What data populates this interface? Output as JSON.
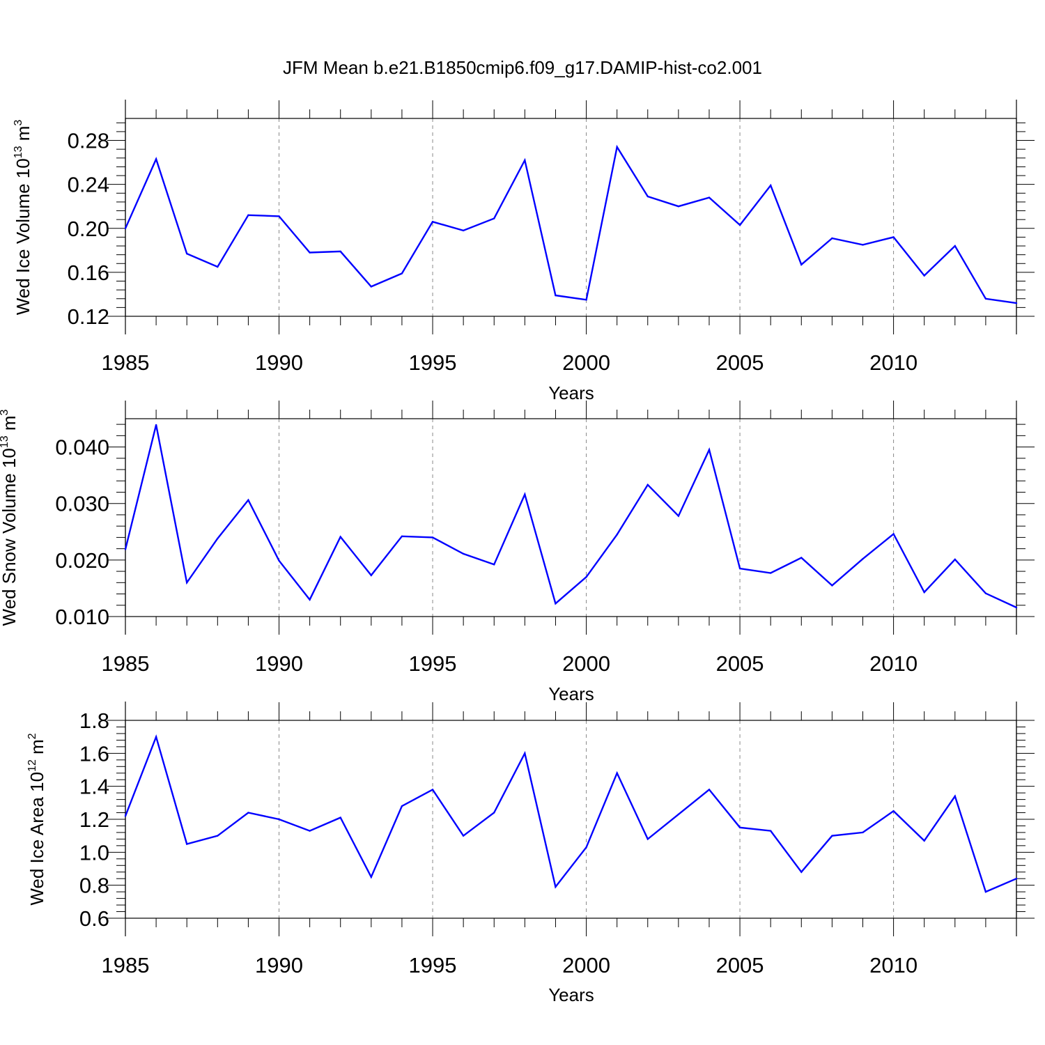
{
  "title": "JFM Mean b.e21.B1850cmip6.f09_g17.DAMIP-hist-co2.001",
  "chart_data": [
    {
      "type": "line",
      "ylabel_main": "Wed Ice Volume 10",
      "ylabel_exp": "13",
      "ylabel_unit": " m",
      "ylabel_unit_exp": "3",
      "xlabel": "Years",
      "xlim": [
        1985,
        2014
      ],
      "ylim": [
        0.12,
        0.3
      ],
      "yticks": [
        0.12,
        0.16,
        0.2,
        0.24,
        0.28
      ],
      "ytick_labels": [
        "0.12",
        "0.16",
        "0.20",
        "0.24",
        "0.28"
      ],
      "xticks": [
        1985,
        1990,
        1995,
        2000,
        2005,
        2010
      ],
      "xtick_labels": [
        "1985",
        "1990",
        "1995",
        "2000",
        "2005",
        "2010"
      ],
      "color": "#0000ff",
      "x": [
        1985,
        1986,
        1987,
        1988,
        1989,
        1990,
        1991,
        1992,
        1993,
        1994,
        1995,
        1996,
        1997,
        1998,
        1999,
        2000,
        2001,
        2002,
        2003,
        2004,
        2005,
        2006,
        2007,
        2008,
        2009,
        2010,
        2011,
        2012,
        2013,
        2014
      ],
      "values": [
        0.2,
        0.263,
        0.177,
        0.165,
        0.212,
        0.211,
        0.178,
        0.179,
        0.147,
        0.159,
        0.206,
        0.198,
        0.209,
        0.262,
        0.139,
        0.135,
        0.274,
        0.229,
        0.22,
        0.228,
        0.203,
        0.239,
        0.167,
        0.191,
        0.185,
        0.192,
        0.157,
        0.184,
        0.136,
        0.132
      ]
    },
    {
      "type": "line",
      "ylabel_main": "Wed Snow Volume 10",
      "ylabel_exp": "13",
      "ylabel_unit": " m",
      "ylabel_unit_exp": "3",
      "xlabel": "Years",
      "xlim": [
        1985,
        2014
      ],
      "ylim": [
        0.01,
        0.045
      ],
      "yticks": [
        0.01,
        0.02,
        0.03,
        0.04
      ],
      "ytick_labels": [
        "0.010",
        "0.020",
        "0.030",
        "0.040"
      ],
      "xticks": [
        1985,
        1990,
        1995,
        2000,
        2005,
        2010
      ],
      "xtick_labels": [
        "1985",
        "1990",
        "1995",
        "2000",
        "2005",
        "2010"
      ],
      "color": "#0000ff",
      "x": [
        1985,
        1986,
        1987,
        1988,
        1989,
        1990,
        1991,
        1992,
        1993,
        1994,
        1995,
        1996,
        1997,
        1998,
        1999,
        2000,
        2001,
        2002,
        2003,
        2004,
        2005,
        2006,
        2007,
        2008,
        2009,
        2010,
        2011,
        2012,
        2013,
        2014
      ],
      "values": [
        0.0219,
        0.0439,
        0.016,
        0.0238,
        0.0306,
        0.0199,
        0.013,
        0.0241,
        0.0173,
        0.0242,
        0.024,
        0.0211,
        0.0192,
        0.0316,
        0.0123,
        0.017,
        0.0245,
        0.0333,
        0.0278,
        0.0395,
        0.0185,
        0.0177,
        0.0204,
        0.0155,
        0.0202,
        0.0246,
        0.0143,
        0.0201,
        0.0141,
        0.0116
      ]
    },
    {
      "type": "line",
      "ylabel_main": "Wed Ice Area 10",
      "ylabel_exp": "12",
      "ylabel_unit": " m",
      "ylabel_unit_exp": "2",
      "xlabel": "Years",
      "xlim": [
        1985,
        2014
      ],
      "ylim": [
        0.6,
        1.8
      ],
      "yticks": [
        0.6,
        0.8,
        1.0,
        1.2,
        1.4,
        1.6,
        1.8
      ],
      "ytick_labels": [
        "0.6",
        "0.8",
        "1.0",
        "1.2",
        "1.4",
        "1.6",
        "1.8"
      ],
      "xticks": [
        1985,
        1990,
        1995,
        2000,
        2005,
        2010
      ],
      "xtick_labels": [
        "1985",
        "1990",
        "1995",
        "2000",
        "2005",
        "2010"
      ],
      "color": "#0000ff",
      "x": [
        1985,
        1986,
        1987,
        1988,
        1989,
        1990,
        1991,
        1992,
        1993,
        1994,
        1995,
        1996,
        1997,
        1998,
        1999,
        2000,
        2001,
        2002,
        2003,
        2004,
        2005,
        2006,
        2007,
        2008,
        2009,
        2010,
        2011,
        2012,
        2013,
        2014
      ],
      "values": [
        1.22,
        1.7,
        1.05,
        1.1,
        1.24,
        1.2,
        1.13,
        1.21,
        0.85,
        1.28,
        1.38,
        1.1,
        1.24,
        1.6,
        0.79,
        1.03,
        1.48,
        1.08,
        1.23,
        1.38,
        1.15,
        1.13,
        0.88,
        1.1,
        1.12,
        1.25,
        1.07,
        1.34,
        0.76,
        0.84
      ]
    }
  ]
}
